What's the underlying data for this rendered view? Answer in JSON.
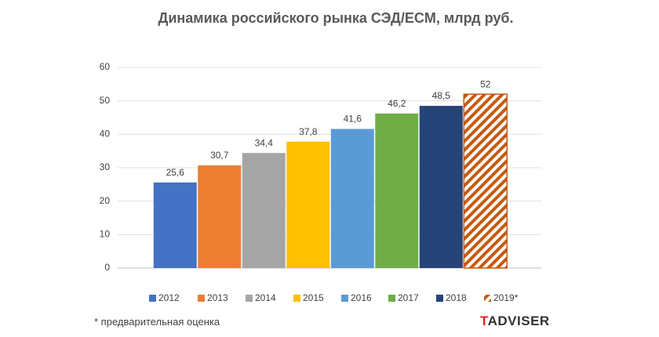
{
  "chart_data": {
    "type": "bar",
    "title": "Динамика российского рынка СЭД/ECM, млрд руб.",
    "categories": [
      "2012",
      "2013",
      "2014",
      "2015",
      "2016",
      "2017",
      "2018",
      "2019*"
    ],
    "values": [
      25.6,
      30.7,
      34.4,
      37.8,
      41.6,
      46.2,
      48.5,
      52
    ],
    "value_labels": [
      "25,6",
      "30,7",
      "34,4",
      "37,8",
      "41,6",
      "46,2",
      "48,5",
      "52"
    ],
    "colors": [
      "#4472c4",
      "#ed7d31",
      "#a5a5a5",
      "#ffc000",
      "#5b9bd5",
      "#70ad47",
      "#264478",
      "#c55a11"
    ],
    "hatch": [
      false,
      false,
      false,
      false,
      false,
      false,
      false,
      true
    ],
    "ylim": [
      0,
      60
    ],
    "yticks": [
      0,
      10,
      20,
      30,
      40,
      50,
      60
    ],
    "grid": true,
    "legend": "bottom",
    "footnote": "* предварительная оценка",
    "logo": "TADVISER"
  }
}
